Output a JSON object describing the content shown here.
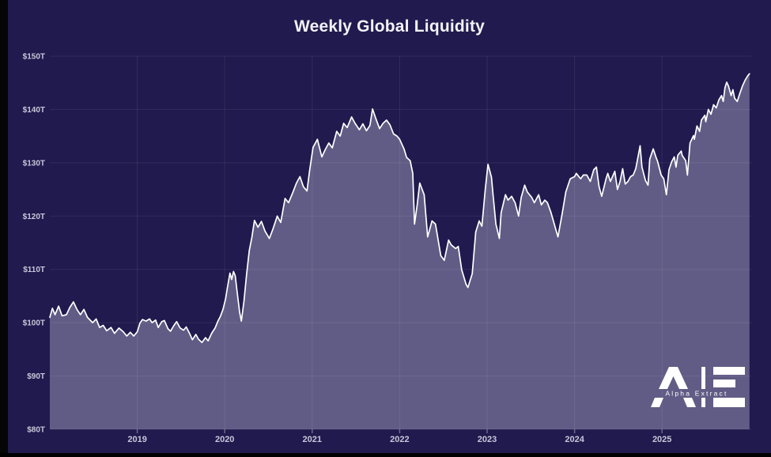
{
  "title": "Weekly Global Liquidity",
  "logo": {
    "brand_initials": "AE",
    "text": "Alpha Extract"
  },
  "colors": {
    "background": "#211a4e",
    "area_fill": "#615c85",
    "line": "#ffffff",
    "gridline": "rgba(255,255,255,0.08)",
    "tick_text": "#c9c6da",
    "title_text": "#f2f1f7"
  },
  "chart_data": {
    "type": "area",
    "title": "Weekly Global Liquidity",
    "xlabel": "",
    "ylabel": "",
    "unit": "trillion USD",
    "grid": true,
    "legend": "none",
    "x_range": [
      2018.0,
      2026.02
    ],
    "y_range": [
      80,
      150
    ],
    "x_ticks": [
      {
        "value": 2019,
        "label": "2019"
      },
      {
        "value": 2020,
        "label": "2020"
      },
      {
        "value": 2021,
        "label": "2021"
      },
      {
        "value": 2022,
        "label": "2022"
      },
      {
        "value": 2023,
        "label": "2023"
      },
      {
        "value": 2024,
        "label": "2024"
      },
      {
        "value": 2025,
        "label": "2025"
      }
    ],
    "y_ticks": [
      {
        "value": 80,
        "label": "$80T"
      },
      {
        "value": 90,
        "label": "$90T"
      },
      {
        "value": 100,
        "label": "$100T"
      },
      {
        "value": 110,
        "label": "$110T"
      },
      {
        "value": 120,
        "label": "$120T"
      },
      {
        "value": 130,
        "label": "$130T"
      },
      {
        "value": 140,
        "label": "$140T"
      },
      {
        "value": 150,
        "label": "$150T"
      }
    ],
    "series": [
      {
        "name": "Global Liquidity",
        "points": [
          [
            2018.0,
            101.0
          ],
          [
            2018.03,
            102.7
          ],
          [
            2018.06,
            101.5
          ],
          [
            2018.1,
            103.1
          ],
          [
            2018.14,
            101.3
          ],
          [
            2018.19,
            101.5
          ],
          [
            2018.23,
            102.9
          ],
          [
            2018.27,
            103.9
          ],
          [
            2018.31,
            102.5
          ],
          [
            2018.35,
            101.5
          ],
          [
            2018.39,
            102.5
          ],
          [
            2018.43,
            101.0
          ],
          [
            2018.49,
            100.0
          ],
          [
            2018.53,
            100.7
          ],
          [
            2018.57,
            99.1
          ],
          [
            2018.61,
            99.5
          ],
          [
            2018.65,
            98.5
          ],
          [
            2018.7,
            99.1
          ],
          [
            2018.74,
            98.0
          ],
          [
            2018.79,
            99.0
          ],
          [
            2018.84,
            98.3
          ],
          [
            2018.88,
            97.5
          ],
          [
            2018.92,
            98.2
          ],
          [
            2018.96,
            97.5
          ],
          [
            2019.0,
            98.3
          ],
          [
            2019.03,
            99.9
          ],
          [
            2019.06,
            100.6
          ],
          [
            2019.1,
            100.3
          ],
          [
            2019.14,
            100.7
          ],
          [
            2019.17,
            100.0
          ],
          [
            2019.21,
            100.5
          ],
          [
            2019.24,
            99.1
          ],
          [
            2019.28,
            100.2
          ],
          [
            2019.31,
            100.4
          ],
          [
            2019.35,
            98.9
          ],
          [
            2019.38,
            98.4
          ],
          [
            2019.42,
            99.5
          ],
          [
            2019.45,
            100.2
          ],
          [
            2019.49,
            99.0
          ],
          [
            2019.53,
            98.6
          ],
          [
            2019.56,
            99.2
          ],
          [
            2019.6,
            97.9
          ],
          [
            2019.63,
            96.8
          ],
          [
            2019.67,
            97.8
          ],
          [
            2019.7,
            96.9
          ],
          [
            2019.74,
            96.3
          ],
          [
            2019.78,
            97.2
          ],
          [
            2019.81,
            96.6
          ],
          [
            2019.85,
            98.0
          ],
          [
            2019.89,
            99.0
          ],
          [
            2019.92,
            100.2
          ],
          [
            2019.95,
            101.2
          ],
          [
            2019.98,
            102.5
          ],
          [
            2020.01,
            104.5
          ],
          [
            2020.03,
            106.5
          ],
          [
            2020.06,
            109.3
          ],
          [
            2020.08,
            108.1
          ],
          [
            2020.1,
            109.6
          ],
          [
            2020.12,
            108.8
          ],
          [
            2020.14,
            106.0
          ],
          [
            2020.17,
            102.0
          ],
          [
            2020.19,
            100.3
          ],
          [
            2020.22,
            104.0
          ],
          [
            2020.25,
            109.0
          ],
          [
            2020.28,
            113.5
          ],
          [
            2020.31,
            116.0
          ],
          [
            2020.34,
            119.2
          ],
          [
            2020.38,
            117.9
          ],
          [
            2020.42,
            119.0
          ],
          [
            2020.46,
            117.2
          ],
          [
            2020.51,
            115.8
          ],
          [
            2020.55,
            117.5
          ],
          [
            2020.6,
            120.0
          ],
          [
            2020.64,
            118.8
          ],
          [
            2020.69,
            123.3
          ],
          [
            2020.73,
            122.5
          ],
          [
            2020.78,
            124.5
          ],
          [
            2020.82,
            126.2
          ],
          [
            2020.86,
            127.4
          ],
          [
            2020.9,
            125.5
          ],
          [
            2020.94,
            124.7
          ],
          [
            2020.97,
            128.5
          ],
          [
            2021.01,
            132.9
          ],
          [
            2021.06,
            134.4
          ],
          [
            2021.11,
            131.1
          ],
          [
            2021.15,
            132.5
          ],
          [
            2021.19,
            133.7
          ],
          [
            2021.23,
            132.8
          ],
          [
            2021.28,
            135.9
          ],
          [
            2021.32,
            135.0
          ],
          [
            2021.36,
            137.4
          ],
          [
            2021.4,
            136.6
          ],
          [
            2021.45,
            138.6
          ],
          [
            2021.49,
            137.4
          ],
          [
            2021.54,
            136.2
          ],
          [
            2021.58,
            137.3
          ],
          [
            2021.62,
            136.0
          ],
          [
            2021.66,
            137.0
          ],
          [
            2021.69,
            140.1
          ],
          [
            2021.73,
            138.2
          ],
          [
            2021.77,
            136.4
          ],
          [
            2021.81,
            137.4
          ],
          [
            2021.85,
            138.0
          ],
          [
            2021.89,
            137.1
          ],
          [
            2021.93,
            135.4
          ],
          [
            2021.97,
            135.0
          ],
          [
            2022.0,
            134.4
          ],
          [
            2022.05,
            132.6
          ],
          [
            2022.08,
            131.0
          ],
          [
            2022.12,
            130.4
          ],
          [
            2022.15,
            128.0
          ],
          [
            2022.17,
            118.5
          ],
          [
            2022.2,
            122.0
          ],
          [
            2022.23,
            126.2
          ],
          [
            2022.28,
            124.0
          ],
          [
            2022.32,
            116.1
          ],
          [
            2022.37,
            119.1
          ],
          [
            2022.41,
            118.5
          ],
          [
            2022.47,
            112.6
          ],
          [
            2022.51,
            111.7
          ],
          [
            2022.56,
            115.5
          ],
          [
            2022.59,
            114.6
          ],
          [
            2022.64,
            113.9
          ],
          [
            2022.67,
            114.3
          ],
          [
            2022.71,
            109.9
          ],
          [
            2022.76,
            107.2
          ],
          [
            2022.78,
            106.6
          ],
          [
            2022.83,
            109.2
          ],
          [
            2022.87,
            117.0
          ],
          [
            2022.91,
            119.1
          ],
          [
            2022.94,
            118.1
          ],
          [
            2022.98,
            125.2
          ],
          [
            2023.01,
            129.7
          ],
          [
            2023.05,
            127.3
          ],
          [
            2023.07,
            123.7
          ],
          [
            2023.1,
            118.5
          ],
          [
            2023.14,
            115.8
          ],
          [
            2023.16,
            120.6
          ],
          [
            2023.21,
            124.0
          ],
          [
            2023.24,
            123.0
          ],
          [
            2023.28,
            123.7
          ],
          [
            2023.32,
            122.5
          ],
          [
            2023.36,
            120.0
          ],
          [
            2023.39,
            123.5
          ],
          [
            2023.43,
            125.8
          ],
          [
            2023.46,
            124.5
          ],
          [
            2023.51,
            123.5
          ],
          [
            2023.54,
            122.5
          ],
          [
            2023.59,
            124.0
          ],
          [
            2023.62,
            122.1
          ],
          [
            2023.66,
            123.0
          ],
          [
            2023.69,
            122.5
          ],
          [
            2023.73,
            120.7
          ],
          [
            2023.78,
            117.8
          ],
          [
            2023.81,
            116.1
          ],
          [
            2023.86,
            120.6
          ],
          [
            2023.9,
            124.5
          ],
          [
            2023.95,
            127.0
          ],
          [
            2024.0,
            127.4
          ],
          [
            2024.02,
            128.0
          ],
          [
            2024.07,
            127.0
          ],
          [
            2024.1,
            127.7
          ],
          [
            2024.14,
            127.7
          ],
          [
            2024.18,
            126.5
          ],
          [
            2024.22,
            128.7
          ],
          [
            2024.25,
            129.2
          ],
          [
            2024.28,
            125.5
          ],
          [
            2024.31,
            123.7
          ],
          [
            2024.36,
            127.0
          ],
          [
            2024.38,
            128.0
          ],
          [
            2024.41,
            126.5
          ],
          [
            2024.46,
            128.4
          ],
          [
            2024.49,
            125.0
          ],
          [
            2024.52,
            126.5
          ],
          [
            2024.55,
            128.9
          ],
          [
            2024.58,
            126.0
          ],
          [
            2024.61,
            126.5
          ],
          [
            2024.64,
            127.4
          ],
          [
            2024.67,
            127.7
          ],
          [
            2024.7,
            128.9
          ],
          [
            2024.75,
            133.2
          ],
          [
            2024.77,
            129.2
          ],
          [
            2024.81,
            126.7
          ],
          [
            2024.84,
            125.8
          ],
          [
            2024.86,
            130.7
          ],
          [
            2024.9,
            132.6
          ],
          [
            2024.93,
            131.1
          ],
          [
            2024.95,
            130.2
          ],
          [
            2024.99,
            127.7
          ],
          [
            2025.02,
            127.0
          ],
          [
            2025.05,
            124.0
          ],
          [
            2025.08,
            128.7
          ],
          [
            2025.11,
            130.2
          ],
          [
            2025.14,
            131.1
          ],
          [
            2025.16,
            129.2
          ],
          [
            2025.18,
            131.4
          ],
          [
            2025.22,
            132.2
          ],
          [
            2025.23,
            131.4
          ],
          [
            2025.27,
            130.4
          ],
          [
            2025.29,
            127.7
          ],
          [
            2025.32,
            133.7
          ],
          [
            2025.36,
            135.1
          ],
          [
            2025.37,
            134.4
          ],
          [
            2025.4,
            136.9
          ],
          [
            2025.43,
            135.9
          ],
          [
            2025.45,
            138.0
          ],
          [
            2025.49,
            138.9
          ],
          [
            2025.5,
            137.7
          ],
          [
            2025.53,
            140.0
          ],
          [
            2025.56,
            139.1
          ],
          [
            2025.59,
            140.9
          ],
          [
            2025.62,
            140.3
          ],
          [
            2025.65,
            141.8
          ],
          [
            2025.68,
            142.6
          ],
          [
            2025.7,
            141.5
          ],
          [
            2025.72,
            144.1
          ],
          [
            2025.74,
            145.1
          ],
          [
            2025.76,
            144.4
          ],
          [
            2025.79,
            142.6
          ],
          [
            2025.81,
            143.7
          ],
          [
            2025.83,
            142.1
          ],
          [
            2025.86,
            141.5
          ],
          [
            2025.89,
            143.0
          ],
          [
            2025.92,
            144.4
          ],
          [
            2025.95,
            145.5
          ],
          [
            2025.98,
            146.3
          ],
          [
            2026.0,
            146.7
          ]
        ]
      }
    ]
  }
}
